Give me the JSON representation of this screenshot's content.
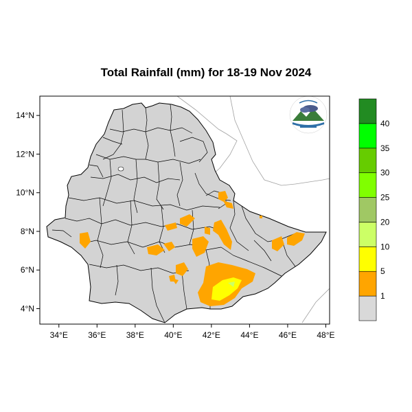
{
  "title": "Total Rainfall (mm) for 18-19 Nov 2024",
  "map": {
    "lon_range": [
      33,
      48.2
    ],
    "lat_range": [
      3.2,
      15
    ],
    "x_ticks": [
      {
        "value": 34,
        "label": "34°E"
      },
      {
        "value": 36,
        "label": "36°E"
      },
      {
        "value": 38,
        "label": "38°E"
      },
      {
        "value": 40,
        "label": "40°E"
      },
      {
        "value": 42,
        "label": "42°E"
      },
      {
        "value": 44,
        "label": "44°E"
      },
      {
        "value": 46,
        "label": "46°E"
      },
      {
        "value": 48,
        "label": "48°E"
      }
    ],
    "y_ticks": [
      {
        "value": 4,
        "label": "4°N"
      },
      {
        "value": 6,
        "label": "6°N"
      },
      {
        "value": 8,
        "label": "8°N"
      },
      {
        "value": 10,
        "label": "10°N"
      },
      {
        "value": 12,
        "label": "12°N"
      },
      {
        "value": 14,
        "label": "14°N"
      }
    ],
    "country_fill": "#d3d3d3",
    "outline_color": "#000000"
  },
  "legend": {
    "labels": [
      "1",
      "5",
      "10",
      "20",
      "25",
      "30",
      "35",
      "40"
    ],
    "colors": [
      "#d9d9d9",
      "#ffa500",
      "#ffff00",
      "#ccff66",
      "#a0c864",
      "#80ff00",
      "#66cc00",
      "#00ff00",
      "#228b22"
    ]
  },
  "logo": {
    "icon": "ethiopian-meteorology-institute-logo"
  }
}
